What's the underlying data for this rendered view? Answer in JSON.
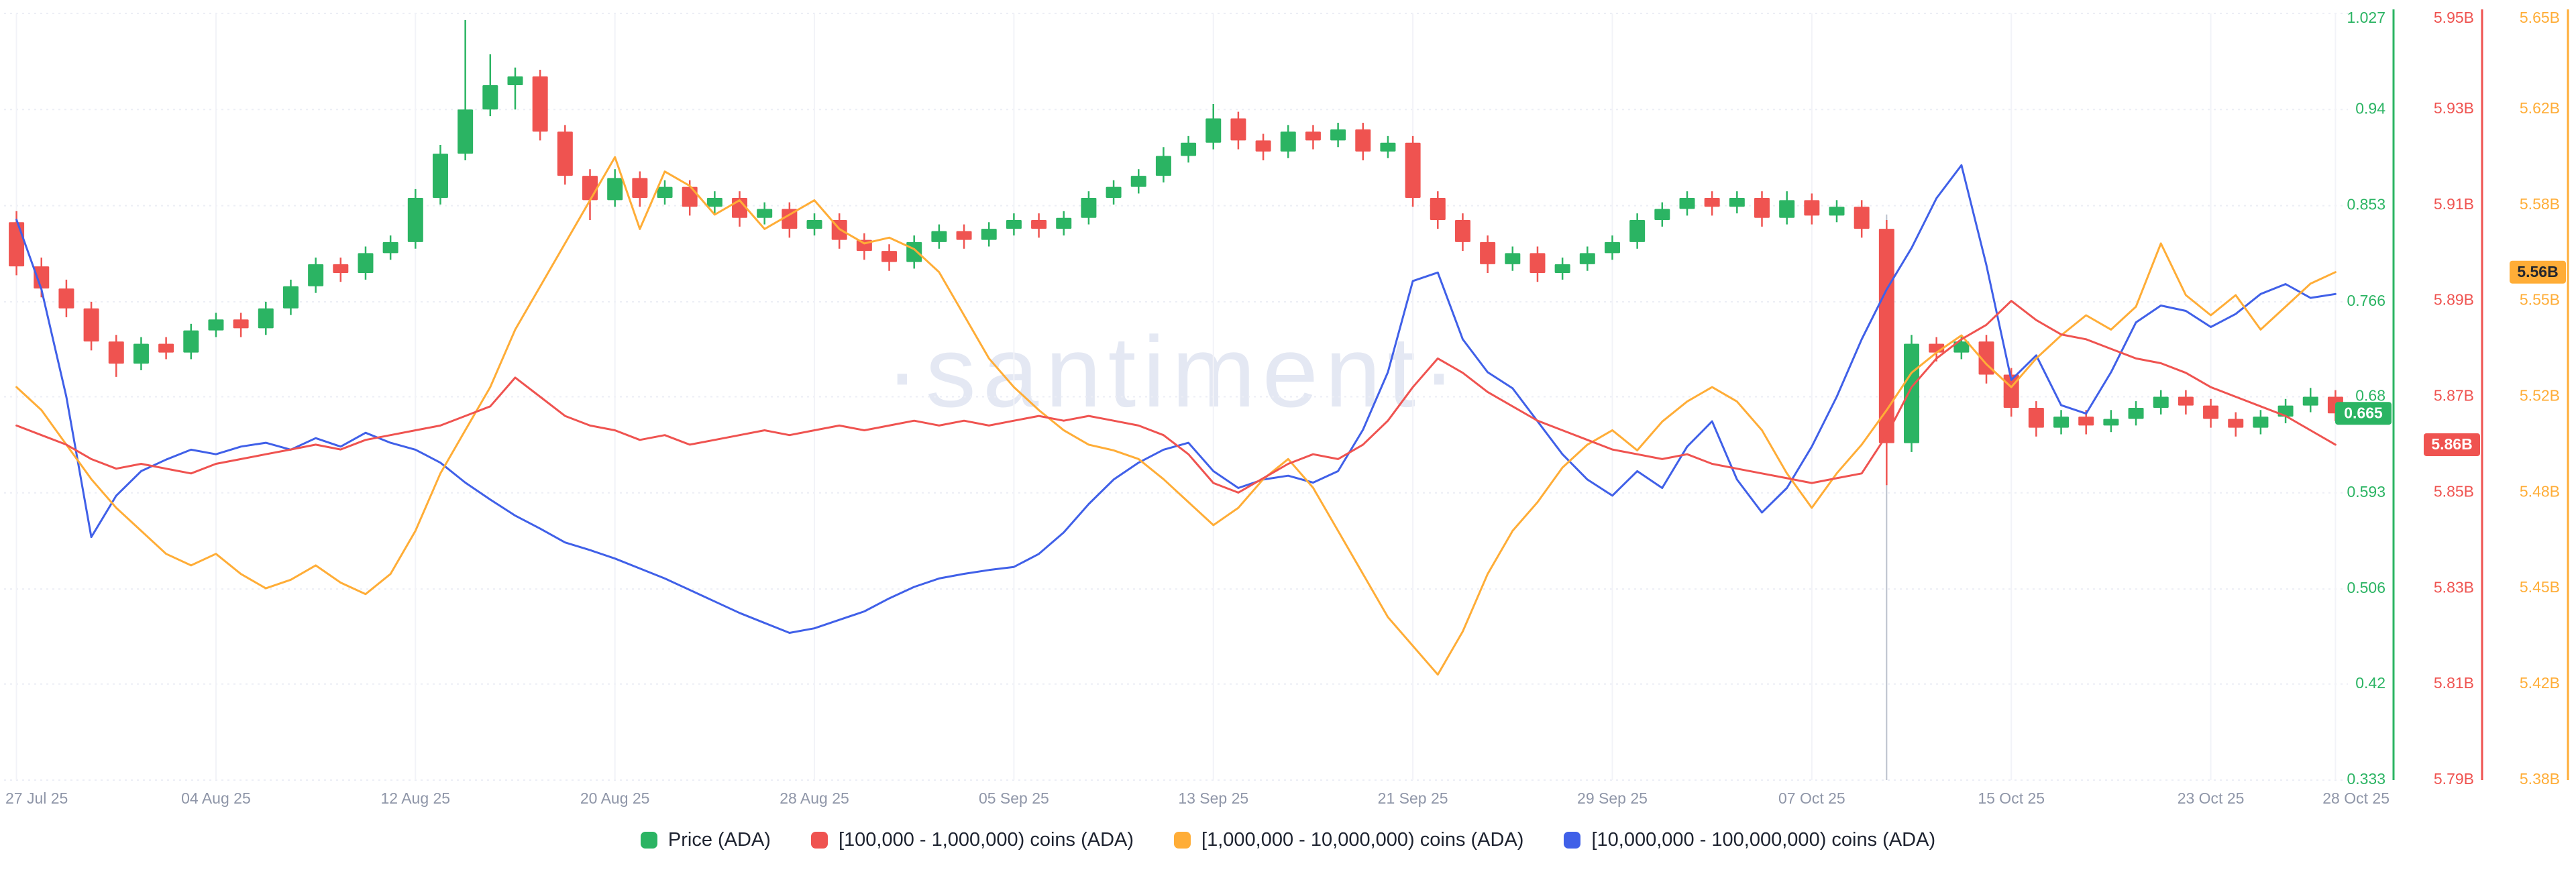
{
  "watermark_text": "·santiment·",
  "colors": {
    "up_green": "#2BB463",
    "down_red": "#EF5350",
    "line_red": "#EF5350",
    "line_yellow": "#FFAD37",
    "line_blue": "#4060E8",
    "grid": "#eceef5",
    "date_label": "#8f96a8",
    "marker_line": "#98a0b3"
  },
  "chart_data": {
    "type": "candlestick+line",
    "title": "",
    "grid": true,
    "legend_position": "bottom",
    "x_tick_labels": [
      "27 Jul 25",
      "04 Aug 25",
      "12 Aug 25",
      "20 Aug 25",
      "28 Aug 25",
      "05 Sep 25",
      "13 Sep 25",
      "21 Sep 25",
      "29 Sep 25",
      "07 Oct 25",
      "15 Oct 25",
      "23 Oct 25",
      "28 Oct 25"
    ],
    "x_tick_indices": [
      0,
      8,
      16,
      24,
      32,
      40,
      48,
      56,
      64,
      72,
      80,
      88,
      93
    ],
    "marker_line_index": 75,
    "dates": [
      "27 Jul",
      "28 Jul",
      "29 Jul",
      "30 Jul",
      "31 Jul",
      "01 Aug",
      "02 Aug",
      "03 Aug",
      "04 Aug",
      "05 Aug",
      "06 Aug",
      "07 Aug",
      "08 Aug",
      "09 Aug",
      "10 Aug",
      "11 Aug",
      "12 Aug",
      "13 Aug",
      "14 Aug",
      "15 Aug",
      "16 Aug",
      "17 Aug",
      "18 Aug",
      "19 Aug",
      "20 Aug",
      "21 Aug",
      "22 Aug",
      "23 Aug",
      "24 Aug",
      "25 Aug",
      "26 Aug",
      "27 Aug",
      "28 Aug",
      "29 Aug",
      "30 Aug",
      "31 Aug",
      "01 Sep",
      "02 Sep",
      "03 Sep",
      "04 Sep",
      "05 Sep",
      "06 Sep",
      "07 Sep",
      "08 Sep",
      "09 Sep",
      "10 Sep",
      "11 Sep",
      "12 Sep",
      "13 Sep",
      "14 Sep",
      "15 Sep",
      "16 Sep",
      "17 Sep",
      "18 Sep",
      "19 Sep",
      "20 Sep",
      "21 Sep",
      "22 Sep",
      "23 Sep",
      "24 Sep",
      "25 Sep",
      "26 Sep",
      "27 Sep",
      "28 Sep",
      "29 Sep",
      "30 Sep",
      "01 Oct",
      "02 Oct",
      "03 Oct",
      "04 Oct",
      "05 Oct",
      "06 Oct",
      "07 Oct",
      "08 Oct",
      "09 Oct",
      "10 Oct",
      "11 Oct",
      "12 Oct",
      "13 Oct",
      "14 Oct",
      "15 Oct",
      "16 Oct",
      "17 Oct",
      "18 Oct",
      "19 Oct",
      "20 Oct",
      "21 Oct",
      "22 Oct",
      "23 Oct",
      "24 Oct",
      "25 Oct",
      "26 Oct",
      "27 Oct",
      "28 Oct"
    ],
    "price": {
      "name": "Price (ADA)",
      "up_color": "#2BB463",
      "down_color": "#EF5350",
      "range": [
        0.333,
        1.027
      ],
      "axis_tick_labels": [
        "1.027",
        "0.94",
        "0.853",
        "0.766",
        "0.68",
        "0.593",
        "0.506",
        "0.42",
        "0.333"
      ],
      "axis_tick_values": [
        1.027,
        0.94,
        0.853,
        0.766,
        0.68,
        0.593,
        0.506,
        0.42,
        0.333
      ],
      "last_value": 0.665,
      "last_value_label": "0.665",
      "candles_ohlc": [
        [
          0.838,
          0.848,
          0.79,
          0.798
        ],
        [
          0.798,
          0.806,
          0.77,
          0.778
        ],
        [
          0.778,
          0.786,
          0.752,
          0.76
        ],
        [
          0.76,
          0.766,
          0.722,
          0.73
        ],
        [
          0.73,
          0.736,
          0.698,
          0.71
        ],
        [
          0.71,
          0.734,
          0.704,
          0.728
        ],
        [
          0.728,
          0.734,
          0.714,
          0.72
        ],
        [
          0.72,
          0.746,
          0.714,
          0.74
        ],
        [
          0.74,
          0.756,
          0.734,
          0.75
        ],
        [
          0.75,
          0.756,
          0.734,
          0.742
        ],
        [
          0.742,
          0.766,
          0.736,
          0.76
        ],
        [
          0.76,
          0.786,
          0.754,
          0.78
        ],
        [
          0.78,
          0.806,
          0.774,
          0.8
        ],
        [
          0.8,
          0.806,
          0.784,
          0.792
        ],
        [
          0.792,
          0.816,
          0.786,
          0.81
        ],
        [
          0.81,
          0.826,
          0.804,
          0.82
        ],
        [
          0.82,
          0.868,
          0.814,
          0.86
        ],
        [
          0.86,
          0.908,
          0.854,
          0.9
        ],
        [
          0.9,
          1.021,
          0.894,
          0.94
        ],
        [
          0.94,
          0.99,
          0.934,
          0.962
        ],
        [
          0.962,
          0.978,
          0.94,
          0.97
        ],
        [
          0.97,
          0.976,
          0.912,
          0.92
        ],
        [
          0.92,
          0.926,
          0.872,
          0.88
        ],
        [
          0.88,
          0.886,
          0.84,
          0.858
        ],
        [
          0.858,
          0.886,
          0.852,
          0.878
        ],
        [
          0.878,
          0.884,
          0.852,
          0.86
        ],
        [
          0.86,
          0.876,
          0.854,
          0.87
        ],
        [
          0.87,
          0.876,
          0.844,
          0.852
        ],
        [
          0.852,
          0.866,
          0.846,
          0.86
        ],
        [
          0.86,
          0.866,
          0.834,
          0.842
        ],
        [
          0.842,
          0.856,
          0.836,
          0.85
        ],
        [
          0.85,
          0.856,
          0.824,
          0.832
        ],
        [
          0.832,
          0.846,
          0.826,
          0.84
        ],
        [
          0.84,
          0.846,
          0.814,
          0.822
        ],
        [
          0.822,
          0.828,
          0.804,
          0.812
        ],
        [
          0.812,
          0.818,
          0.794,
          0.802
        ],
        [
          0.802,
          0.826,
          0.796,
          0.82
        ],
        [
          0.82,
          0.836,
          0.814,
          0.83
        ],
        [
          0.83,
          0.836,
          0.814,
          0.822
        ],
        [
          0.822,
          0.838,
          0.816,
          0.832
        ],
        [
          0.832,
          0.846,
          0.826,
          0.84
        ],
        [
          0.84,
          0.846,
          0.824,
          0.832
        ],
        [
          0.832,
          0.848,
          0.826,
          0.842
        ],
        [
          0.842,
          0.866,
          0.836,
          0.86
        ],
        [
          0.86,
          0.876,
          0.854,
          0.87
        ],
        [
          0.87,
          0.886,
          0.864,
          0.88
        ],
        [
          0.88,
          0.906,
          0.874,
          0.898
        ],
        [
          0.898,
          0.916,
          0.892,
          0.91
        ],
        [
          0.91,
          0.945,
          0.904,
          0.932
        ],
        [
          0.932,
          0.938,
          0.904,
          0.912
        ],
        [
          0.912,
          0.918,
          0.894,
          0.902
        ],
        [
          0.902,
          0.926,
          0.896,
          0.92
        ],
        [
          0.92,
          0.926,
          0.904,
          0.912
        ],
        [
          0.912,
          0.928,
          0.906,
          0.922
        ],
        [
          0.922,
          0.928,
          0.894,
          0.902
        ],
        [
          0.902,
          0.916,
          0.896,
          0.91
        ],
        [
          0.91,
          0.916,
          0.852,
          0.86
        ],
        [
          0.86,
          0.866,
          0.832,
          0.84
        ],
        [
          0.84,
          0.846,
          0.812,
          0.82
        ],
        [
          0.82,
          0.826,
          0.792,
          0.8
        ],
        [
          0.8,
          0.816,
          0.794,
          0.81
        ],
        [
          0.81,
          0.816,
          0.784,
          0.792
        ],
        [
          0.792,
          0.806,
          0.786,
          0.8
        ],
        [
          0.8,
          0.816,
          0.794,
          0.81
        ],
        [
          0.81,
          0.826,
          0.804,
          0.82
        ],
        [
          0.82,
          0.846,
          0.814,
          0.84
        ],
        [
          0.84,
          0.856,
          0.834,
          0.85
        ],
        [
          0.85,
          0.866,
          0.844,
          0.86
        ],
        [
          0.86,
          0.866,
          0.844,
          0.852
        ],
        [
          0.852,
          0.866,
          0.846,
          0.86
        ],
        [
          0.86,
          0.866,
          0.834,
          0.842
        ],
        [
          0.842,
          0.866,
          0.836,
          0.858
        ],
        [
          0.858,
          0.864,
          0.836,
          0.844
        ],
        [
          0.844,
          0.858,
          0.838,
          0.852
        ],
        [
          0.852,
          0.858,
          0.824,
          0.832
        ],
        [
          0.832,
          0.84,
          0.6,
          0.638
        ],
        [
          0.638,
          0.736,
          0.63,
          0.728
        ],
        [
          0.728,
          0.734,
          0.712,
          0.72
        ],
        [
          0.72,
          0.736,
          0.714,
          0.73
        ],
        [
          0.73,
          0.736,
          0.692,
          0.7
        ],
        [
          0.7,
          0.706,
          0.662,
          0.67
        ],
        [
          0.67,
          0.676,
          0.644,
          0.652
        ],
        [
          0.652,
          0.668,
          0.646,
          0.662
        ],
        [
          0.662,
          0.668,
          0.646,
          0.654
        ],
        [
          0.654,
          0.668,
          0.648,
          0.66
        ],
        [
          0.66,
          0.676,
          0.654,
          0.67
        ],
        [
          0.67,
          0.686,
          0.664,
          0.68
        ],
        [
          0.68,
          0.686,
          0.664,
          0.672
        ],
        [
          0.672,
          0.678,
          0.652,
          0.66
        ],
        [
          0.66,
          0.666,
          0.644,
          0.652
        ],
        [
          0.652,
          0.668,
          0.646,
          0.662
        ],
        [
          0.662,
          0.678,
          0.656,
          0.672
        ],
        [
          0.672,
          0.688,
          0.666,
          0.68
        ],
        [
          0.68,
          0.686,
          0.658,
          0.665
        ]
      ]
    },
    "series": [
      {
        "name": "[100,000 - 1,000,000) coins (ADA)",
        "color": "#EF5350",
        "range": [
          5.79,
          5.95
        ],
        "axis_tick_labels": [
          "5.95B",
          "5.93B",
          "5.91B",
          "5.89B",
          "5.87B",
          "5.85B",
          "5.83B",
          "5.81B",
          "5.79B"
        ],
        "axis_tick_values": [
          5.95,
          5.93,
          5.91,
          5.89,
          5.87,
          5.85,
          5.83,
          5.81,
          5.79
        ],
        "last_value_label": "5.86B",
        "values": [
          5.864,
          5.862,
          5.86,
          5.857,
          5.855,
          5.856,
          5.855,
          5.854,
          5.856,
          5.857,
          5.858,
          5.859,
          5.86,
          5.859,
          5.861,
          5.862,
          5.863,
          5.864,
          5.866,
          5.868,
          5.874,
          5.87,
          5.866,
          5.864,
          5.863,
          5.861,
          5.862,
          5.86,
          5.861,
          5.862,
          5.863,
          5.862,
          5.863,
          5.864,
          5.863,
          5.864,
          5.865,
          5.864,
          5.865,
          5.864,
          5.865,
          5.866,
          5.865,
          5.866,
          5.865,
          5.864,
          5.862,
          5.858,
          5.852,
          5.85,
          5.853,
          5.856,
          5.858,
          5.857,
          5.86,
          5.865,
          5.872,
          5.878,
          5.875,
          5.871,
          5.868,
          5.865,
          5.863,
          5.861,
          5.859,
          5.858,
          5.857,
          5.858,
          5.856,
          5.855,
          5.854,
          5.853,
          5.852,
          5.853,
          5.854,
          5.862,
          5.872,
          5.878,
          5.882,
          5.885,
          5.89,
          5.886,
          5.883,
          5.882,
          5.88,
          5.878,
          5.877,
          5.875,
          5.872,
          5.87,
          5.868,
          5.866,
          5.863,
          5.86
        ]
      },
      {
        "name": "[1,000,000 - 10,000,000) coins (ADA)",
        "color": "#FFAD37",
        "range": [
          5.3833,
          5.65
        ],
        "axis_tick_labels": [
          "5.65B",
          "5.62B",
          "5.58B",
          "5.55B",
          "5.52B",
          "5.48B",
          "5.45B",
          "5.42B",
          "5.38B"
        ],
        "axis_tick_values": [
          5.65,
          5.6167,
          5.5833,
          5.55,
          5.5167,
          5.4833,
          5.45,
          5.4167,
          5.3833
        ],
        "last_value_label": "5.56B",
        "values": [
          5.52,
          5.512,
          5.5,
          5.488,
          5.478,
          5.47,
          5.462,
          5.458,
          5.462,
          5.455,
          5.45,
          5.453,
          5.458,
          5.452,
          5.448,
          5.455,
          5.47,
          5.49,
          5.505,
          5.52,
          5.54,
          5.555,
          5.57,
          5.585,
          5.6,
          5.575,
          5.595,
          5.59,
          5.58,
          5.585,
          5.575,
          5.58,
          5.585,
          5.575,
          5.57,
          5.572,
          5.568,
          5.56,
          5.545,
          5.53,
          5.52,
          5.512,
          5.505,
          5.5,
          5.498,
          5.495,
          5.488,
          5.48,
          5.472,
          5.478,
          5.488,
          5.495,
          5.485,
          5.47,
          5.455,
          5.44,
          5.43,
          5.42,
          5.435,
          5.455,
          5.47,
          5.48,
          5.492,
          5.5,
          5.505,
          5.498,
          5.508,
          5.515,
          5.52,
          5.515,
          5.505,
          5.49,
          5.478,
          5.49,
          5.5,
          5.512,
          5.525,
          5.532,
          5.538,
          5.528,
          5.52,
          5.53,
          5.538,
          5.545,
          5.54,
          5.548,
          5.57,
          5.552,
          5.545,
          5.552,
          5.54,
          5.548,
          5.556,
          5.56
        ]
      },
      {
        "name": "[10,000,000 - 100,000,000) coins (ADA)",
        "color": "#4060E8",
        "range": [
          0,
          1
        ],
        "axis_hidden": true,
        "unit": "relative pane position (axis not shown in screenshot)",
        "values": [
          0.731,
          0.64,
          0.5,
          0.317,
          0.371,
          0.403,
          0.418,
          0.431,
          0.425,
          0.435,
          0.44,
          0.431,
          0.446,
          0.435,
          0.453,
          0.44,
          0.431,
          0.414,
          0.388,
          0.366,
          0.345,
          0.328,
          0.31,
          0.3,
          0.289,
          0.276,
          0.263,
          0.248,
          0.233,
          0.218,
          0.205,
          0.192,
          0.198,
          0.209,
          0.22,
          0.237,
          0.252,
          0.263,
          0.269,
          0.274,
          0.278,
          0.295,
          0.323,
          0.36,
          0.392,
          0.414,
          0.431,
          0.44,
          0.403,
          0.381,
          0.392,
          0.397,
          0.388,
          0.403,
          0.457,
          0.532,
          0.651,
          0.662,
          0.575,
          0.532,
          0.511,
          0.468,
          0.425,
          0.392,
          0.371,
          0.403,
          0.381,
          0.435,
          0.468,
          0.392,
          0.349,
          0.381,
          0.435,
          0.5,
          0.575,
          0.64,
          0.694,
          0.759,
          0.802,
          0.672,
          0.522,
          0.554,
          0.489,
          0.478,
          0.532,
          0.597,
          0.619,
          0.612,
          0.591,
          0.608,
          0.634,
          0.647,
          0.629,
          0.634
        ]
      }
    ],
    "legend": [
      {
        "label": "Price (ADA)",
        "color": "#2BB463"
      },
      {
        "label": "[100,000 - 1,000,000) coins (ADA)",
        "color": "#EF5350"
      },
      {
        "label": "[1,000,000 - 10,000,000) coins (ADA)",
        "color": "#FFAD37"
      },
      {
        "label": "[10,000,000 - 100,000,000) coins (ADA)",
        "color": "#4060E8"
      }
    ]
  }
}
